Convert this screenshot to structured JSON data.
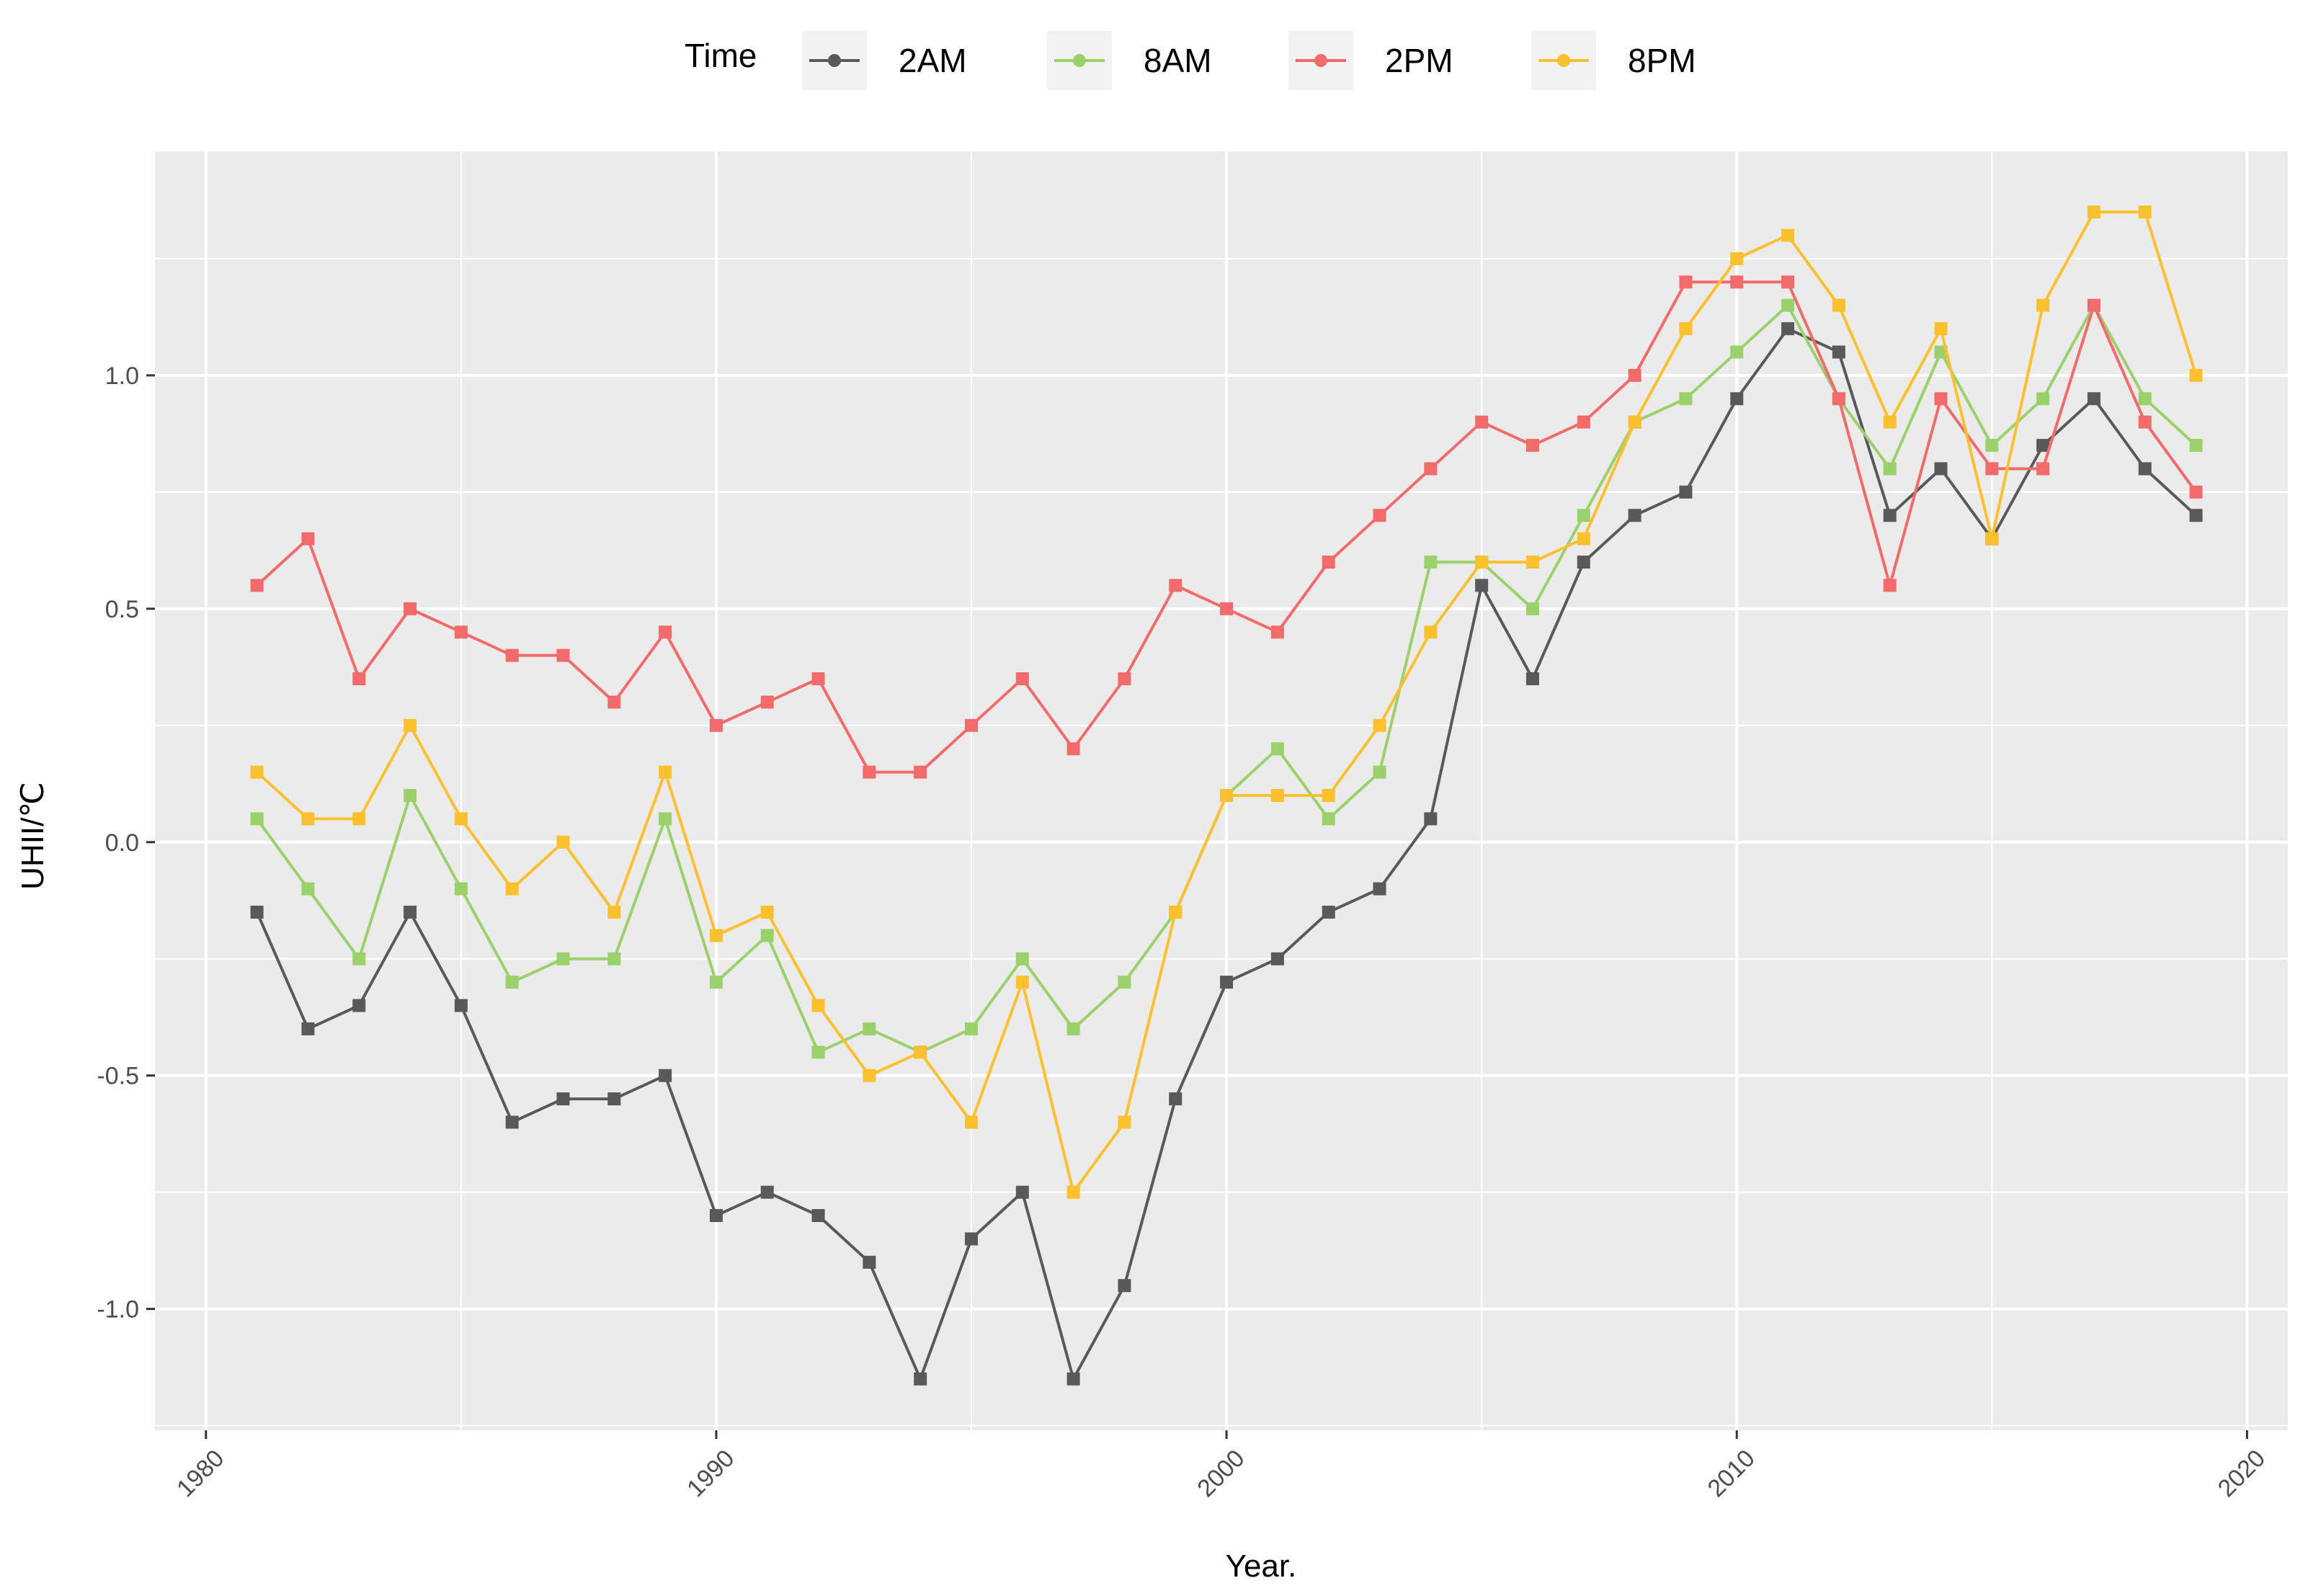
{
  "chart_data": {
    "type": "line",
    "title": "",
    "xlabel": "Year.",
    "ylabel": "UHII/℃",
    "xlim": [
      1979,
      2020.8
    ],
    "ylim": [
      -1.26,
      1.48
    ],
    "x_ticks": [
      "1980",
      "1990",
      "2000",
      "2010",
      "2020"
    ],
    "y_ticks": [
      "-1.0",
      "-0.5",
      "0.0",
      "0.5",
      "1.0"
    ],
    "grid": true,
    "legend": {
      "title": "Time",
      "position": "top"
    },
    "x": [
      1981,
      1982,
      1983,
      1984,
      1985,
      1986,
      1987,
      1988,
      1989,
      1990,
      1991,
      1992,
      1993,
      1994,
      1995,
      1996,
      1997,
      1998,
      1999,
      2000,
      2001,
      2002,
      2003,
      2004,
      2005,
      2006,
      2007,
      2008,
      2009,
      2010,
      2011,
      2012,
      2013,
      2014,
      2015,
      2016,
      2017,
      2018,
      2019
    ],
    "series": [
      {
        "name": "2AM",
        "color": "#595959",
        "values": [
          -0.15,
          -0.4,
          -0.35,
          -0.15,
          -0.35,
          -0.6,
          -0.55,
          -0.55,
          -0.5,
          -0.8,
          -0.75,
          -0.8,
          -0.9,
          -1.15,
          -0.85,
          -0.75,
          -1.15,
          -0.95,
          -0.55,
          -0.3,
          -0.25,
          -0.15,
          -0.1,
          0.05,
          0.55,
          0.35,
          0.6,
          0.7,
          0.75,
          0.95,
          1.1,
          1.05,
          0.7,
          0.8,
          0.65,
          0.85,
          0.95,
          0.8,
          0.7
        ]
      },
      {
        "name": "8AM",
        "color": "#9bd16a",
        "values": [
          0.05,
          -0.1,
          -0.25,
          0.1,
          -0.1,
          -0.3,
          -0.25,
          -0.25,
          0.05,
          -0.3,
          -0.2,
          -0.45,
          -0.4,
          -0.45,
          -0.4,
          -0.25,
          -0.4,
          -0.3,
          -0.15,
          0.1,
          0.2,
          0.05,
          0.15,
          0.6,
          0.6,
          0.5,
          0.7,
          0.9,
          0.95,
          1.05,
          1.15,
          0.95,
          0.8,
          1.05,
          0.85,
          0.95,
          1.15,
          0.95,
          0.85
        ]
      },
      {
        "name": "2PM",
        "color": "#f26a6a",
        "values": [
          0.55,
          0.65,
          0.35,
          0.5,
          0.45,
          0.4,
          0.4,
          0.3,
          0.45,
          0.25,
          0.3,
          0.35,
          0.15,
          0.15,
          0.25,
          0.35,
          0.2,
          0.35,
          0.55,
          0.5,
          0.45,
          0.6,
          0.7,
          0.8,
          0.9,
          0.85,
          0.9,
          1.0,
          1.2,
          1.2,
          1.2,
          0.95,
          0.55,
          0.95,
          0.8,
          0.8,
          1.15,
          0.9,
          0.75
        ]
      },
      {
        "name": "8PM",
        "color": "#fbc02d",
        "values": [
          0.15,
          0.05,
          0.05,
          0.25,
          0.05,
          -0.1,
          0.0,
          -0.15,
          0.15,
          -0.2,
          -0.15,
          -0.35,
          -0.5,
          -0.45,
          -0.6,
          -0.3,
          -0.75,
          -0.6,
          -0.15,
          0.1,
          0.1,
          0.1,
          0.25,
          0.45,
          0.6,
          0.6,
          0.65,
          0.9,
          1.1,
          1.25,
          1.3,
          1.15,
          0.9,
          1.1,
          0.65,
          1.15,
          1.35,
          1.35,
          1.0
        ]
      }
    ]
  }
}
